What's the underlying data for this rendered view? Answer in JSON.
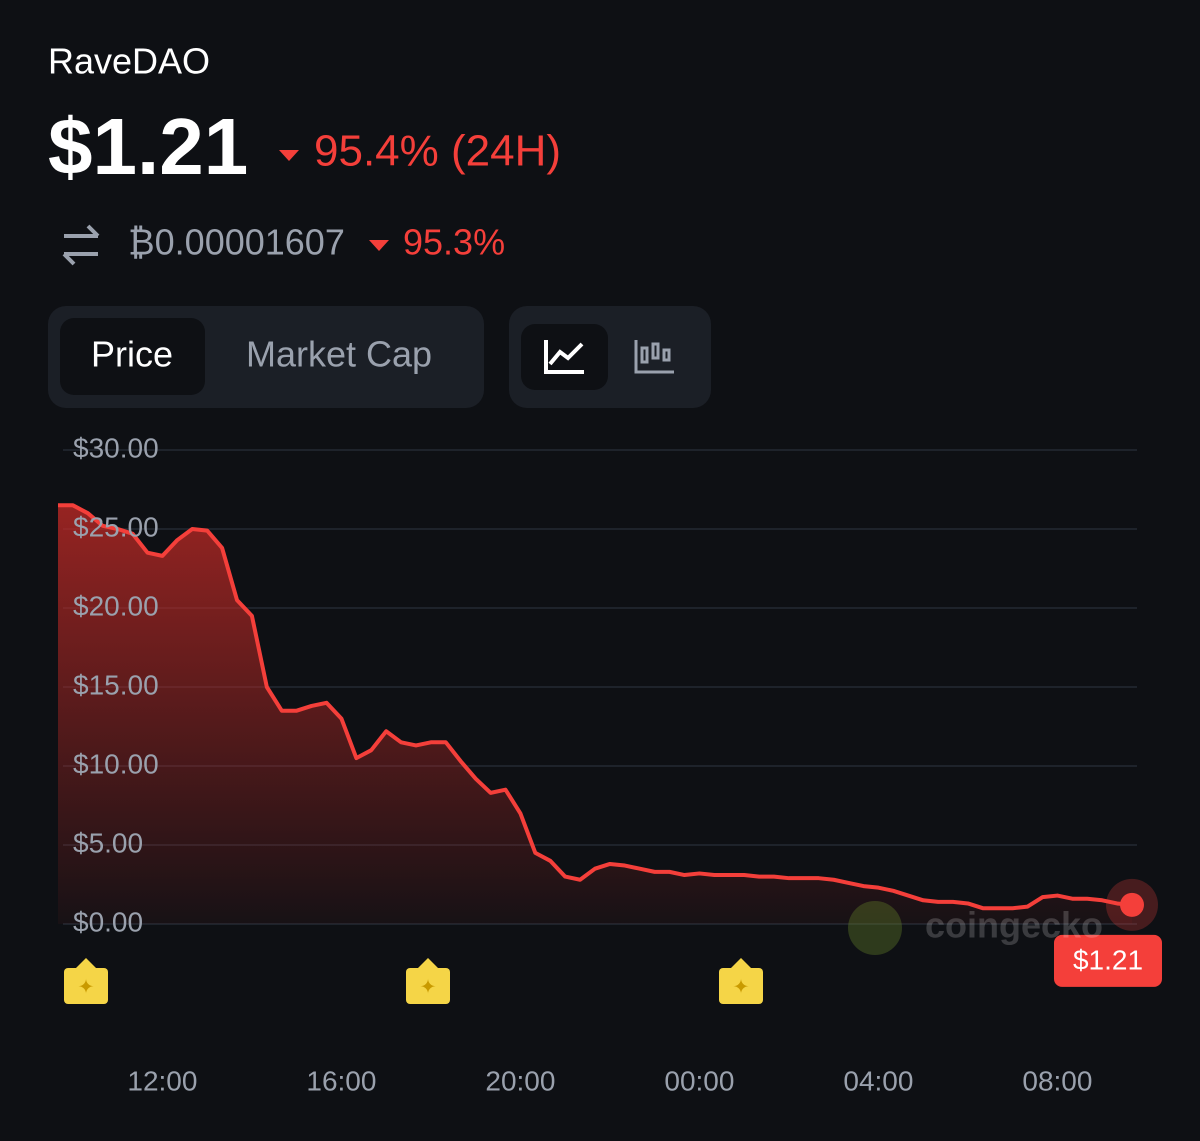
{
  "header": {
    "title": "RaveDAO",
    "price": "$1.21",
    "change": "95.4% (24H)",
    "btc_price": "₿0.00001607",
    "btc_change": "95.3%"
  },
  "tabs": [
    "Price",
    "Market Cap"
  ],
  "watermark": "coingecko",
  "chart_data": {
    "type": "line",
    "categories": [
      null,
      null,
      null,
      null,
      null,
      null,
      null,
      "12:00",
      null,
      null,
      null,
      null,
      null,
      null,
      null,
      null,
      null,
      null,
      null,
      "16:00",
      null,
      null,
      null,
      null,
      null,
      null,
      null,
      null,
      null,
      null,
      null,
      "20:00",
      null,
      null,
      null,
      null,
      null,
      null,
      null,
      null,
      null,
      null,
      null,
      "00:00",
      null,
      null,
      null,
      null,
      null,
      null,
      null,
      null,
      null,
      null,
      null,
      "04:00",
      null,
      null,
      null,
      null,
      null,
      null,
      null,
      null,
      null,
      null,
      null,
      "08:00",
      null,
      null,
      null,
      null,
      null
    ],
    "series": [
      {
        "name": "Price",
        "color": "#f43f3a",
        "values": [
          26.5,
          26.5,
          26,
          25.2,
          25,
          24.7,
          23.5,
          23.3,
          24.3,
          25,
          24.9,
          23.8,
          20.5,
          19.5,
          15,
          13.5,
          13.5,
          13.8,
          14,
          13,
          10.5,
          11,
          12.2,
          11.5,
          11.3,
          11.5,
          11.5,
          10.3,
          9.2,
          8.3,
          8.5,
          7,
          4.5,
          4,
          3,
          2.8,
          3.5,
          3.8,
          3.7,
          3.5,
          3.3,
          3.3,
          3.1,
          3.2,
          3.1,
          3.1,
          3.1,
          3,
          3,
          2.9,
          2.9,
          2.9,
          2.8,
          2.6,
          2.4,
          2.3,
          2.1,
          1.8,
          1.5,
          1.4,
          1.4,
          1.3,
          1,
          1,
          1,
          1.1,
          1.7,
          1.8,
          1.6,
          1.6,
          1.5,
          1.3,
          1.21
        ],
        "value_labels": [
          null,
          null,
          null,
          null,
          null,
          null,
          null,
          null,
          null,
          null,
          null,
          null,
          null,
          null,
          null,
          null,
          null,
          null,
          null,
          null,
          null,
          null,
          null,
          null,
          null,
          null,
          null,
          null,
          null,
          null,
          null,
          null,
          null,
          null,
          null,
          null,
          null,
          null,
          null,
          null,
          null,
          null,
          null,
          null,
          null,
          null,
          null,
          null,
          null,
          null,
          null,
          null,
          null,
          null,
          null,
          null,
          null,
          null,
          null,
          null,
          null,
          null,
          null,
          null,
          null,
          null,
          null,
          null,
          null,
          null,
          null,
          null,
          "$1.21"
        ]
      }
    ],
    "ylim": [
      0,
      30
    ],
    "yticks": [
      {
        "value": 0,
        "label": "$0.00"
      },
      {
        "value": 5,
        "label": "$5.00"
      },
      {
        "value": 10,
        "label": "$10.00"
      },
      {
        "value": 15,
        "label": "$15.00"
      },
      {
        "value": 20,
        "label": "$20.00"
      },
      {
        "value": 25,
        "label": "$25.00"
      },
      {
        "value": 30,
        "label": "$30.00"
      }
    ],
    "grid": true
  }
}
